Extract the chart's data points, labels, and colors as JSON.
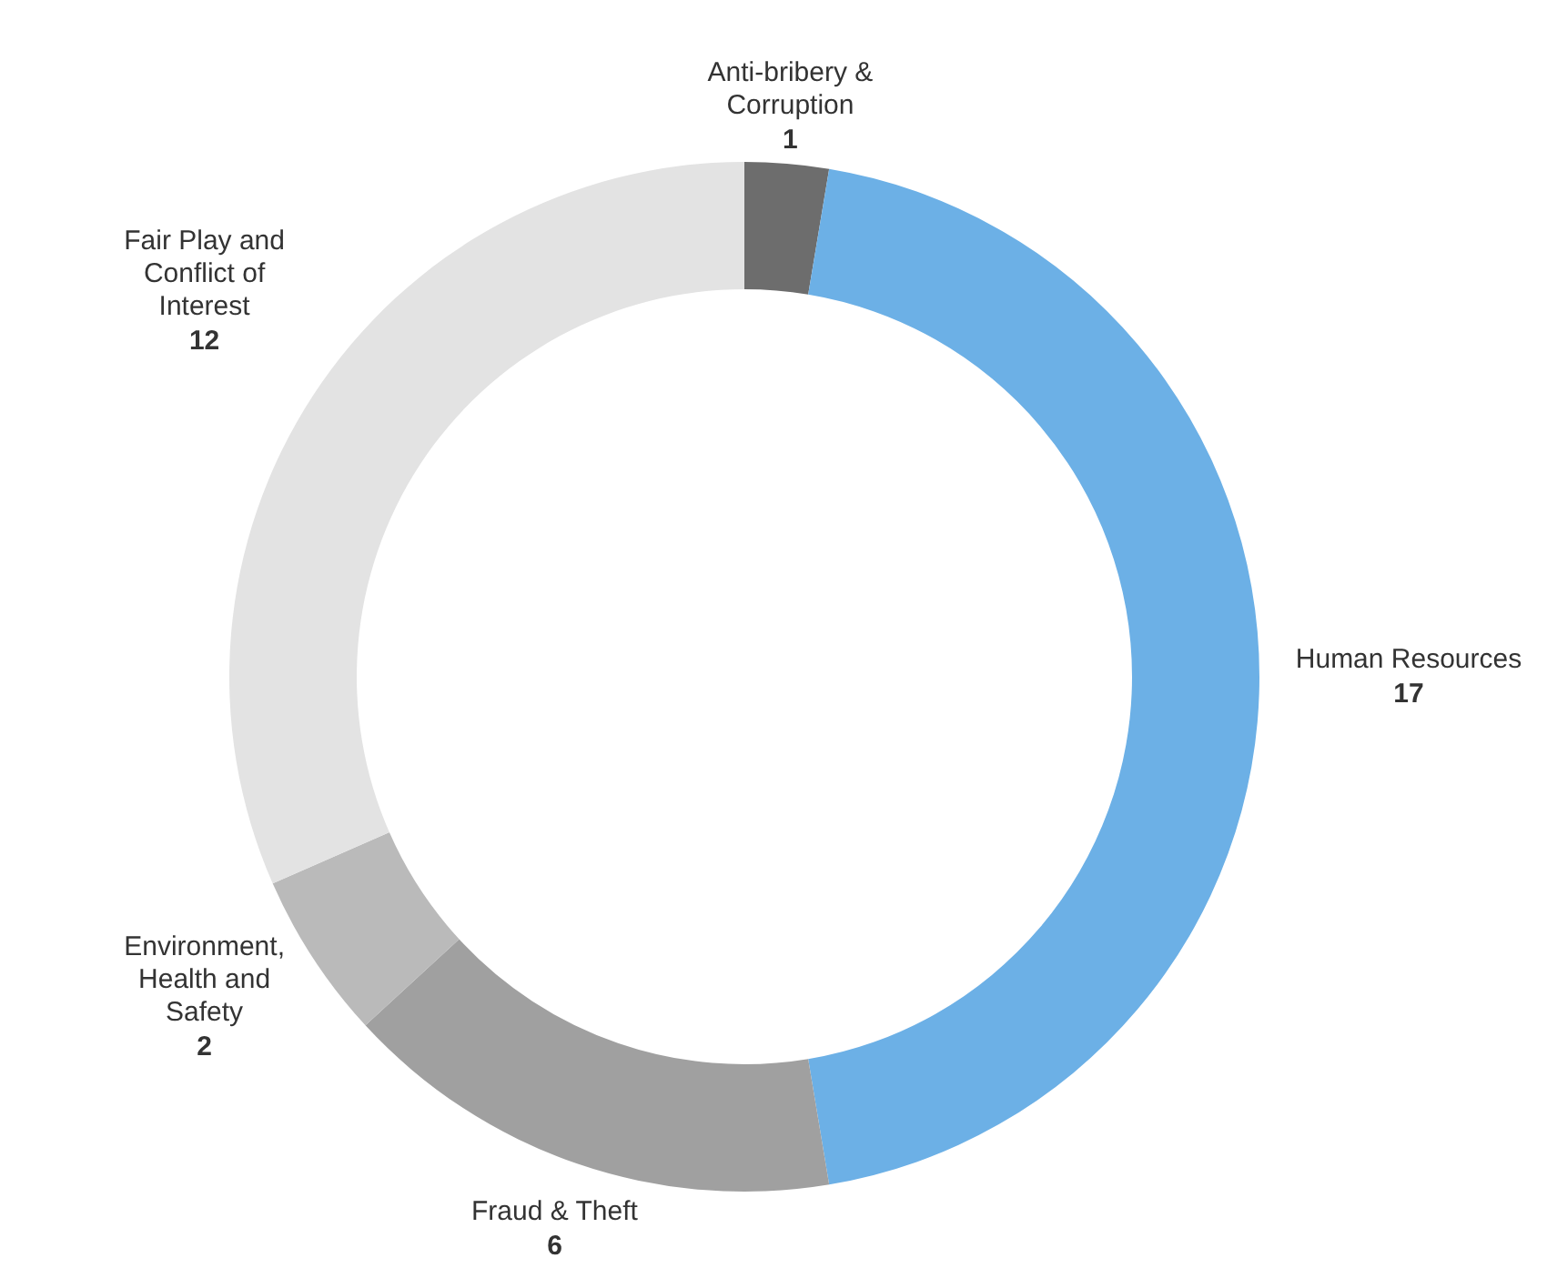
{
  "chart_data": {
    "type": "donut",
    "categories": [
      "Anti-bribery & Corruption",
      "Human Resources",
      "Fraud & Theft",
      "Environment, Health and Safety",
      "Fair Play and Conflict of Interest"
    ],
    "values": [
      1,
      17,
      6,
      2,
      12
    ],
    "colors": [
      "#6d6d6d",
      "#6cb0e6",
      "#a0a0a0",
      "#bababa",
      "#e3e3e3"
    ],
    "data_labels": true
  }
}
